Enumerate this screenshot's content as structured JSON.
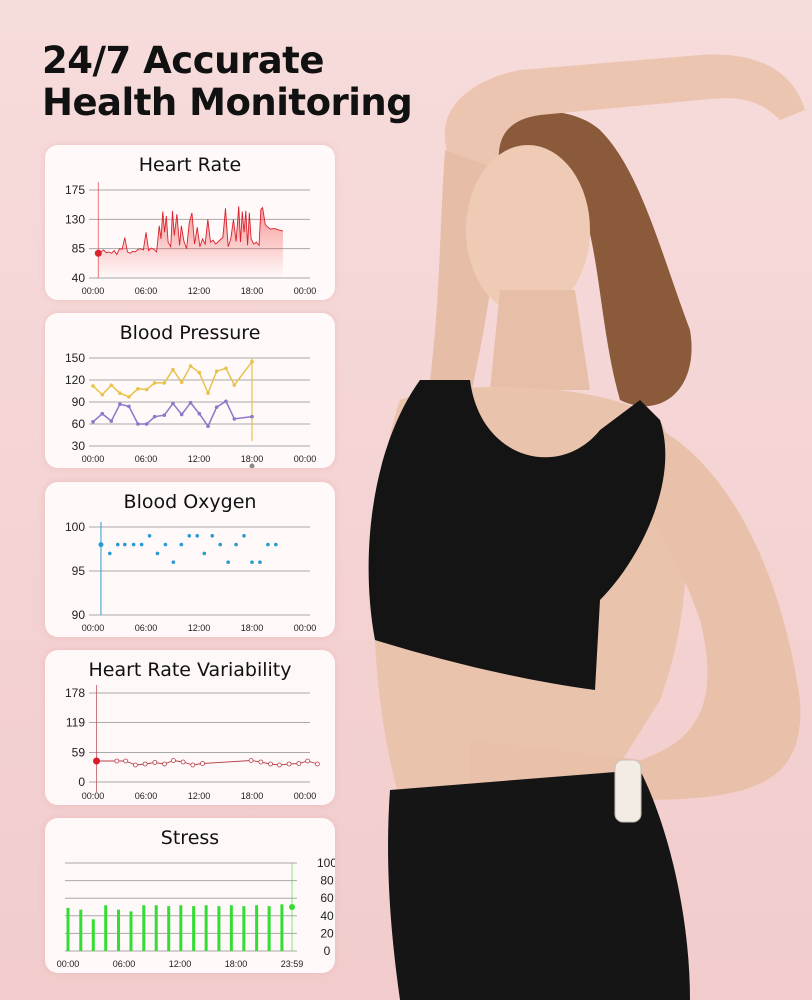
{
  "headline": {
    "line1": "24/7 Accurate",
    "line2": "Health Monitoring"
  },
  "colors": {
    "heart_rate": "#d9232e",
    "systolic": "#e8c24a",
    "diastolic": "#8a78c8",
    "oxygen": "#2a9bd0",
    "hrv": "#b8404a",
    "stress": "#33dd33",
    "background": "#f6d6d6"
  },
  "chart_data": [
    {
      "id": "heart_rate",
      "title": "Heart Rate",
      "type": "area",
      "ylim": [
        40,
        175
      ],
      "yticks": [
        "175",
        "130",
        "85",
        "40"
      ],
      "ytick_values": [
        175,
        130,
        85,
        40
      ],
      "xlim": [
        0,
        24
      ],
      "xticks": [
        "00:00",
        "06:00",
        "12:00",
        "18:00",
        "00:00"
      ],
      "x": [
        0.6,
        0.9,
        1.2,
        1.5,
        1.8,
        2.1,
        2.4,
        2.7,
        3.0,
        3.3,
        3.6,
        3.9,
        4.2,
        4.5,
        4.8,
        5.1,
        5.4,
        5.7,
        6.0,
        6.3,
        6.6,
        6.9,
        7.2,
        7.5,
        7.7,
        7.9,
        8.1,
        8.3,
        8.5,
        8.8,
        9.0,
        9.2,
        9.5,
        9.8,
        10.0,
        10.3,
        10.6,
        10.9,
        11.2,
        11.5,
        11.8,
        12.1,
        12.4,
        12.7,
        13.0,
        13.3,
        13.6,
        13.9,
        14.2,
        14.5,
        14.7,
        15.0,
        15.3,
        15.6,
        15.9,
        16.2,
        16.5,
        16.7,
        16.9,
        17.1,
        17.3,
        17.5,
        17.7,
        17.9,
        18.2,
        18.5,
        18.8,
        19.0,
        19.2,
        19.5,
        19.8,
        20.1,
        20.5,
        21.0,
        21.5
      ],
      "values": [
        78,
        80,
        83,
        79,
        80,
        78,
        82,
        76,
        85,
        84,
        102,
        80,
        78,
        81,
        80,
        84,
        85,
        83,
        110,
        82,
        86,
        84,
        80,
        120,
        100,
        142,
        110,
        135,
        95,
        88,
        143,
        105,
        138,
        90,
        120,
        96,
        85,
        125,
        140,
        92,
        118,
        88,
        100,
        92,
        130,
        95,
        98,
        92,
        96,
        100,
        102,
        147,
        88,
        100,
        130,
        96,
        150,
        95,
        142,
        110,
        143,
        90,
        140,
        100,
        92,
        95,
        90,
        145,
        148,
        122,
        118,
        115,
        116,
        114,
        112
      ],
      "marker": {
        "x": 0.6,
        "value": 78
      }
    },
    {
      "id": "blood_pressure",
      "title": "Blood Pressure",
      "type": "line",
      "ylim": [
        30,
        150
      ],
      "yticks": [
        "150",
        "120",
        "90",
        "60",
        "30"
      ],
      "ytick_values": [
        150,
        120,
        90,
        60,
        30
      ],
      "xlim": [
        0,
        24
      ],
      "xticks": [
        "00:00",
        "06:00",
        "12:00",
        "18:00",
        "00:00"
      ],
      "x": [
        0,
        1.05,
        2.07,
        3.05,
        4.07,
        5.09,
        6.07,
        6.98,
        8.07,
        9.05,
        10.04,
        11.05,
        12.04,
        13.02,
        14.0,
        15.05,
        16.0,
        18.0
      ],
      "series": [
        {
          "values": [
            112,
            100,
            113,
            102,
            97,
            108,
            107,
            116,
            116,
            134,
            117,
            139,
            130,
            102,
            132,
            136,
            113,
            145
          ]
        },
        {
          "values": [
            63,
            74,
            64,
            87,
            84,
            60,
            60,
            70,
            72,
            88,
            73,
            89,
            74,
            57,
            83,
            91,
            67,
            70
          ]
        }
      ],
      "cursor_x": 18
    },
    {
      "id": "blood_oxygen",
      "title": "Blood Oxygen",
      "type": "scatter",
      "ylim": [
        90,
        100
      ],
      "yticks": [
        "100",
        "95",
        "90"
      ],
      "ytick_values": [
        100,
        95,
        90
      ],
      "xlim": [
        0,
        24
      ],
      "xticks": [
        "00:00",
        "06:00",
        "12:00",
        "18:00",
        "00:00"
      ],
      "x": [
        0.9,
        1.9,
        2.8,
        3.6,
        4.6,
        5.5,
        6.4,
        7.3,
        8.2,
        9.1,
        10.0,
        10.9,
        11.8,
        12.6,
        13.5,
        14.4,
        15.3,
        16.2,
        17.1,
        18.0,
        18.9,
        19.8,
        20.7
      ],
      "values": [
        98,
        97,
        98,
        98,
        98,
        98,
        99,
        97,
        98,
        96,
        98,
        99,
        99,
        97,
        99,
        98,
        96,
        98,
        99,
        96,
        96,
        98,
        98
      ]
    },
    {
      "id": "hrv",
      "title": "Heart Rate Variability",
      "type": "line",
      "ylim": [
        0,
        178
      ],
      "yticks": [
        "178",
        "119",
        "59",
        "0"
      ],
      "ytick_values": [
        178,
        119,
        59,
        0
      ],
      "xlim": [
        0,
        24
      ],
      "xticks": [
        "00:00",
        "06:00",
        "12:00",
        "18:00",
        "00:00"
      ],
      "x": [
        0.4,
        2.7,
        3.7,
        4.8,
        5.9,
        7.0,
        8.1,
        9.1,
        10.2,
        11.3,
        12.4,
        17.9,
        19.0,
        20.1,
        21.1,
        22.2,
        23.3,
        24.3,
        25.4
      ],
      "values": [
        42,
        42,
        42,
        34,
        36,
        39,
        36,
        43,
        40,
        34,
        37,
        43,
        40,
        36,
        34,
        36,
        37,
        42,
        36
      ]
    },
    {
      "id": "stress",
      "title": "Stress",
      "type": "bar",
      "ylim": [
        0,
        100
      ],
      "yticks": [
        "100",
        "80",
        "60",
        "40",
        "20",
        "0"
      ],
      "ytick_values": [
        100,
        80,
        60,
        40,
        20,
        0
      ],
      "xlim": [
        0,
        24
      ],
      "xticks": [
        "00:00",
        "06:00",
        "12:00",
        "18:00",
        "23:59"
      ],
      "x": [
        0,
        1.37,
        2.71,
        4.04,
        5.41,
        6.75,
        8.12,
        9.45,
        10.79,
        12.09,
        13.46,
        14.8,
        16.17,
        17.5,
        18.84,
        20.21,
        21.55,
        22.92
      ],
      "values": [
        49,
        47,
        36,
        52,
        47,
        45,
        52,
        52,
        51,
        52,
        51,
        52,
        51,
        52,
        51,
        52,
        51,
        53
      ],
      "marker": {
        "x": 24,
        "value": 50
      }
    }
  ]
}
